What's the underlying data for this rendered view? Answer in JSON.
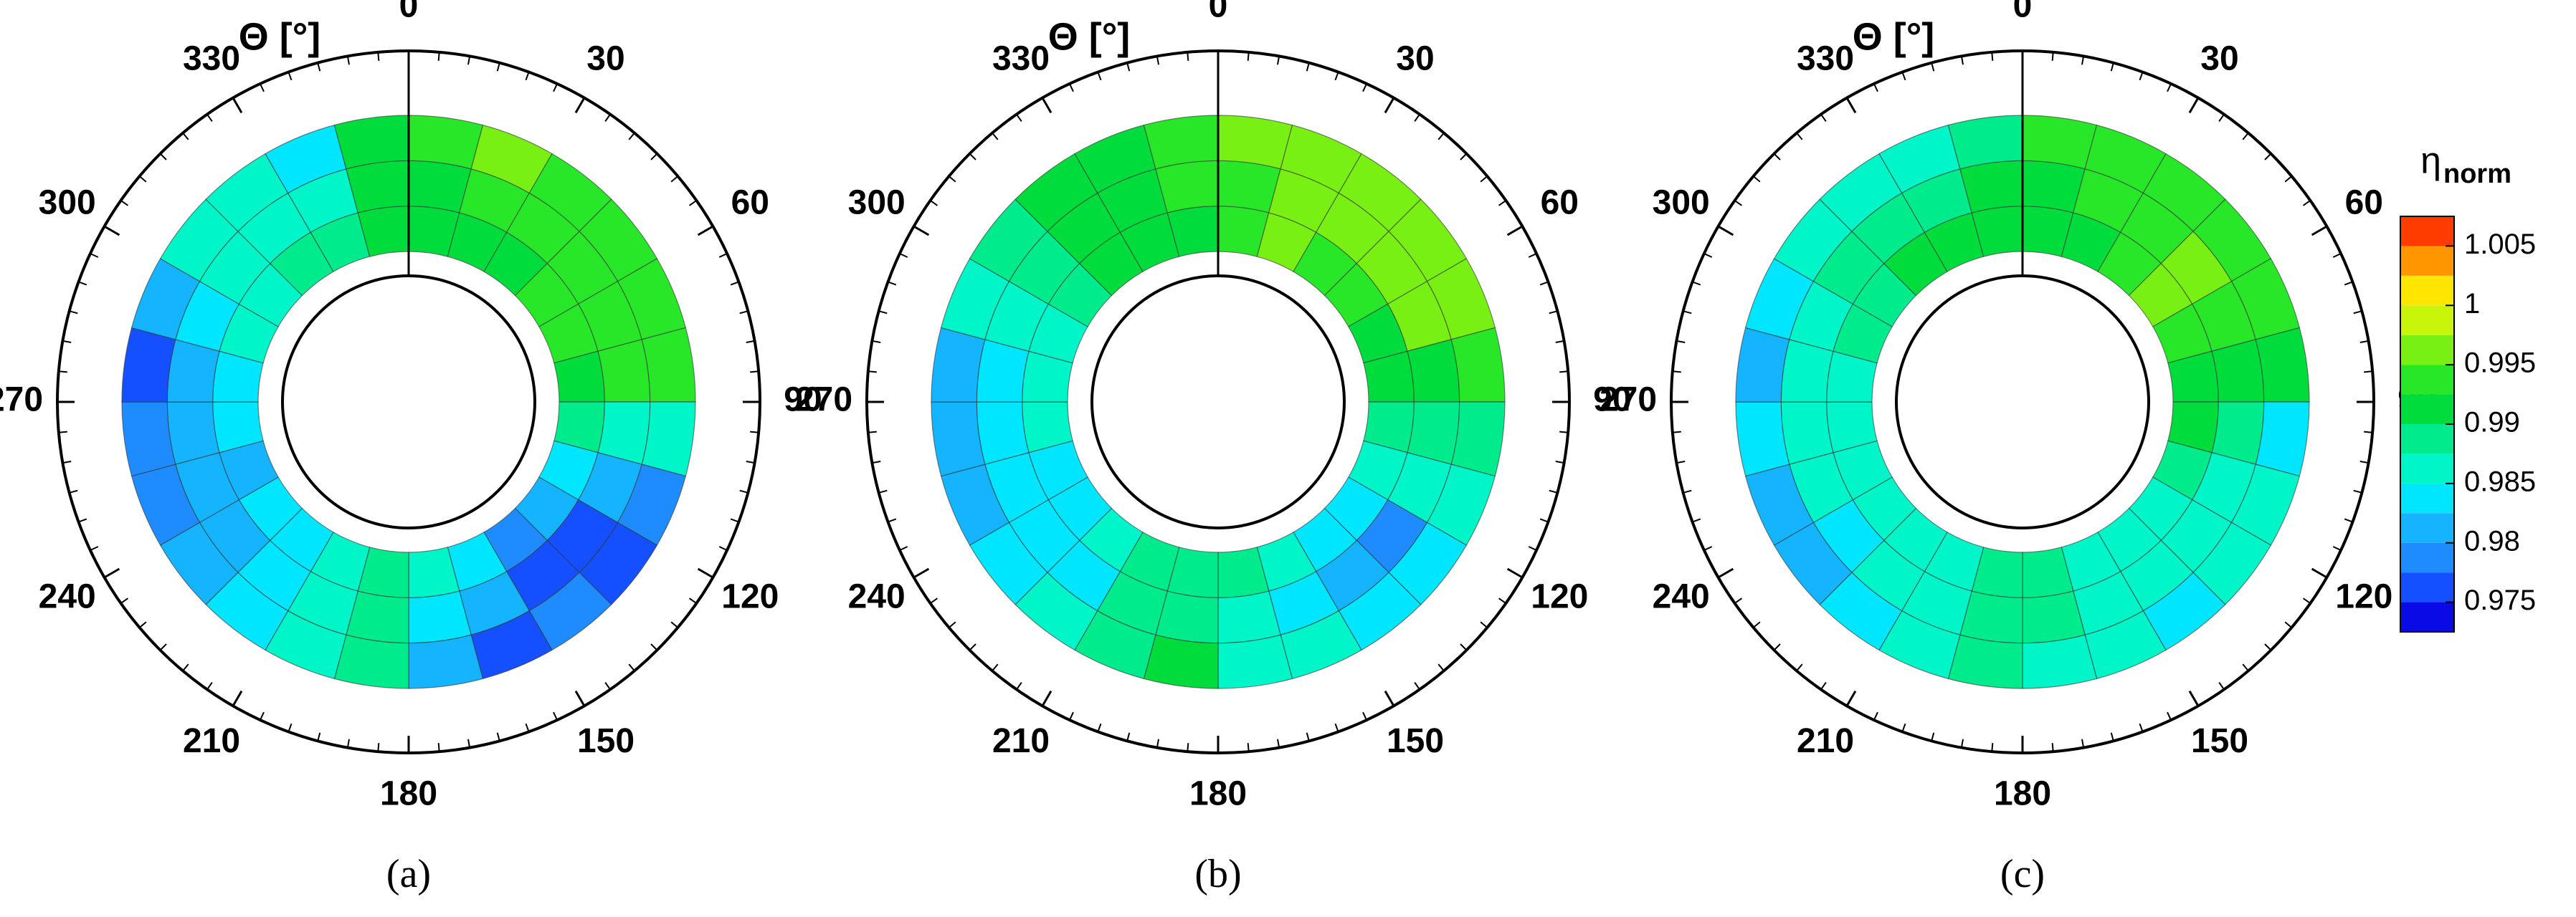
{
  "chart_data": [
    {
      "type": "polar-contour",
      "title": "(a)",
      "axis_label": "Θ [°]",
      "theta": [
        0,
        15,
        30,
        45,
        60,
        75,
        90,
        105,
        120,
        135,
        150,
        165,
        180,
        195,
        210,
        225,
        240,
        255,
        270,
        285,
        300,
        315,
        330,
        345
      ],
      "thetaticks": [
        0,
        30,
        60,
        90,
        120,
        150,
        180,
        210,
        240,
        270,
        300,
        330
      ],
      "values": [
        [
          0.991,
          0.992,
          0.992,
          0.993,
          0.993,
          0.992,
          0.988,
          0.984,
          0.98,
          0.979,
          0.983,
          0.987,
          0.988,
          0.986,
          0.984,
          0.983,
          0.982,
          0.983,
          0.984,
          0.986,
          0.987,
          0.988,
          0.989,
          0.99
        ],
        [
          0.992,
          0.993,
          0.993,
          0.993,
          0.994,
          0.993,
          0.987,
          0.98,
          0.976,
          0.976,
          0.98,
          0.984,
          0.988,
          0.987,
          0.983,
          0.982,
          0.98,
          0.98,
          0.981,
          0.984,
          0.986,
          0.987,
          0.987,
          0.99
        ],
        [
          0.994,
          0.995,
          0.994,
          0.993,
          0.994,
          0.994,
          0.985,
          0.979,
          0.977,
          0.978,
          0.977,
          0.98,
          0.988,
          0.987,
          0.983,
          0.98,
          0.978,
          0.979,
          0.976,
          0.982,
          0.985,
          0.986,
          0.983,
          0.991
        ]
      ]
    },
    {
      "type": "polar-contour",
      "title": "(b)",
      "axis_label": "Θ [°]",
      "theta": [
        0,
        15,
        30,
        45,
        60,
        75,
        90,
        105,
        120,
        135,
        150,
        165,
        180,
        195,
        210,
        225,
        240,
        255,
        270,
        285,
        300,
        315,
        330,
        345
      ],
      "thetaticks": [
        0,
        30,
        60,
        90,
        120,
        150,
        180,
        210,
        240,
        270,
        300,
        330
      ],
      "values": [
        [
          0.993,
          0.995,
          0.994,
          0.993,
          0.992,
          0.991,
          0.989,
          0.986,
          0.983,
          0.984,
          0.986,
          0.988,
          0.989,
          0.988,
          0.985,
          0.984,
          0.984,
          0.985,
          0.986,
          0.987,
          0.989,
          0.99,
          0.991,
          0.992
        ],
        [
          0.994,
          0.996,
          0.996,
          0.996,
          0.995,
          0.992,
          0.989,
          0.985,
          0.978,
          0.982,
          0.984,
          0.987,
          0.989,
          0.988,
          0.984,
          0.983,
          0.983,
          0.984,
          0.984,
          0.987,
          0.989,
          0.99,
          0.991,
          0.993
        ],
        [
          0.996,
          0.997,
          0.997,
          0.997,
          0.997,
          0.993,
          0.988,
          0.986,
          0.983,
          0.983,
          0.985,
          0.987,
          0.99,
          0.988,
          0.985,
          0.983,
          0.982,
          0.982,
          0.98,
          0.985,
          0.988,
          0.99,
          0.991,
          0.994
        ]
      ]
    },
    {
      "type": "polar-contour",
      "title": "(c)",
      "axis_label": "Θ [°]",
      "theta": [
        0,
        15,
        30,
        45,
        60,
        75,
        90,
        105,
        120,
        135,
        150,
        165,
        180,
        195,
        210,
        225,
        240,
        255,
        270,
        285,
        300,
        315,
        330,
        345
      ],
      "thetaticks": [
        0,
        30,
        60,
        90,
        120,
        150,
        180,
        210,
        240,
        270,
        300,
        330
      ],
      "values": [
        [
          0.991,
          0.992,
          0.993,
          0.997,
          0.994,
          0.992,
          0.99,
          0.988,
          0.987,
          0.987,
          0.987,
          0.988,
          0.989,
          0.987,
          0.986,
          0.985,
          0.986,
          0.987,
          0.987,
          0.988,
          0.989,
          0.99,
          0.99,
          0.991
        ],
        [
          0.992,
          0.993,
          0.994,
          0.995,
          0.994,
          0.992,
          0.989,
          0.987,
          0.986,
          0.986,
          0.987,
          0.988,
          0.989,
          0.987,
          0.985,
          0.983,
          0.985,
          0.986,
          0.985,
          0.987,
          0.989,
          0.989,
          0.989,
          0.99
        ],
        [
          0.993,
          0.993,
          0.994,
          0.994,
          0.993,
          0.991,
          0.984,
          0.986,
          0.985,
          0.984,
          0.985,
          0.987,
          0.989,
          0.987,
          0.984,
          0.98,
          0.982,
          0.984,
          0.981,
          0.984,
          0.987,
          0.986,
          0.985,
          0.989
        ]
      ],
      "colorbar": {
        "title": "η",
        "title_sub": "norm",
        "levels": [
          0.9725,
          0.975,
          0.9775,
          0.98,
          0.9825,
          0.985,
          0.9875,
          0.99,
          0.9925,
          0.995,
          0.9975,
          1,
          1.0025,
          1.005,
          1.0075
        ],
        "colors": [
          "#0a0ae6",
          "#1450ff",
          "#1e8cff",
          "#14b4ff",
          "#00e6ff",
          "#00f5c8",
          "#00eb8c",
          "#00dc3c",
          "#28e628",
          "#78f014",
          "#c8f50a",
          "#ffe600",
          "#ff9600",
          "#ff3c00"
        ],
        "ticks": [
          0.975,
          0.98,
          0.985,
          0.99,
          0.995,
          1,
          1.005
        ]
      }
    }
  ]
}
